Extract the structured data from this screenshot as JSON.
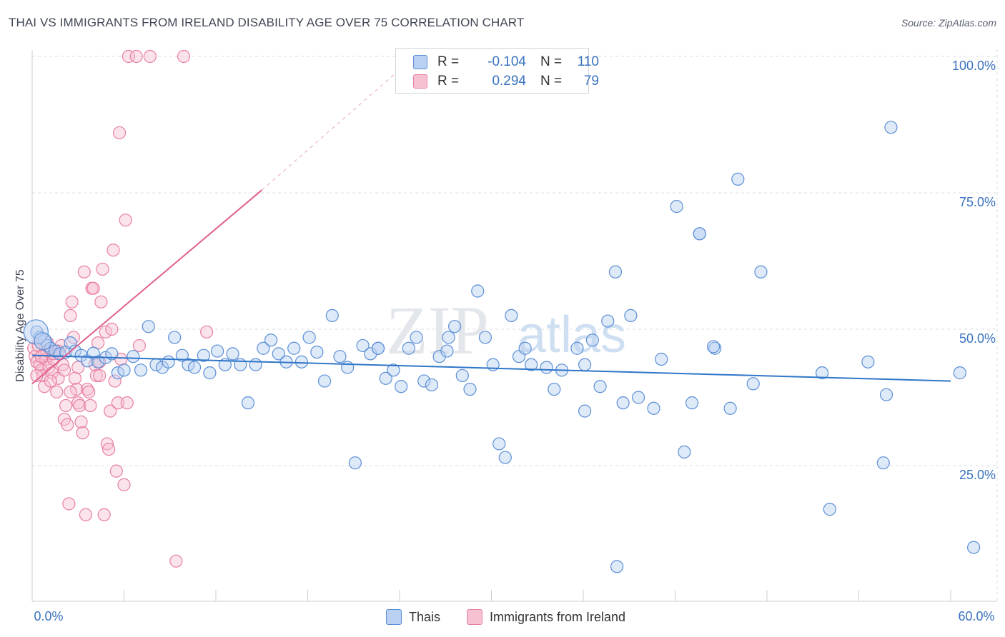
{
  "title": "THAI VS IMMIGRANTS FROM IRELAND DISABILITY AGE OVER 75 CORRELATION CHART",
  "source": "Source: ZipAtlas.com",
  "watermark": {
    "zip": "ZIP",
    "atlas": "atlas"
  },
  "legend": {
    "rows": [
      {
        "r_label": "R =",
        "r_value": "-0.104",
        "n_label": "N =",
        "n_value": "110",
        "color": "#5b8fd6",
        "fill": "#b9d0f2"
      },
      {
        "r_label": "R =",
        "r_value": "0.294",
        "n_label": "N =",
        "n_value": "79",
        "color": "#e87fa0",
        "fill": "#f6c2d2"
      }
    ]
  },
  "bottom_legend": {
    "series1": "Thais",
    "series2": "Immigrants from Ireland"
  },
  "colors": {
    "blue": "#5b8fd6",
    "blue_fill": "#b9d0f2",
    "blue_line": "#2f76c8",
    "pink": "#e87fa0",
    "pink_fill": "#f6c2d2",
    "pink_line": "#e06090",
    "axis_label": "#3a72c0",
    "grid": "#d9dde3"
  },
  "chart_data": {
    "type": "scatter",
    "title": "THAI VS IMMIGRANTS FROM IRELAND DISABILITY AGE OVER 75 CORRELATION CHART",
    "xlabel": "",
    "ylabel": "Disability Age Over 75",
    "xlim": [
      0,
      60
    ],
    "ylim": [
      0,
      105
    ],
    "x_tick_labels": [
      "0.0%",
      "60.0%"
    ],
    "y_ticks": [
      25,
      50,
      75,
      100
    ],
    "y_tick_labels": [
      "25.0%",
      "50.0%",
      "75.0%",
      "100.0%"
    ],
    "grid": true,
    "series": [
      {
        "name": "Thais",
        "points": [
          [
            0.3,
            49.5
          ],
          [
            0.5,
            48.5
          ],
          [
            0.8,
            48.0
          ],
          [
            1.0,
            47.0
          ],
          [
            1.2,
            46.5
          ],
          [
            1.5,
            46.0
          ],
          [
            1.8,
            45.5
          ],
          [
            2.2,
            45.8
          ],
          [
            2.5,
            47.5
          ],
          [
            2.8,
            46.0
          ],
          [
            3.2,
            45.2
          ],
          [
            3.6,
            44.2
          ],
          [
            4.0,
            45.6
          ],
          [
            4.3,
            44.0
          ],
          [
            4.8,
            44.8
          ],
          [
            5.2,
            45.5
          ],
          [
            5.6,
            42.0
          ],
          [
            6.0,
            42.5
          ],
          [
            6.6,
            45.0
          ],
          [
            7.1,
            42.5
          ],
          [
            7.6,
            50.5
          ],
          [
            8.1,
            43.5
          ],
          [
            8.5,
            43.0
          ],
          [
            8.9,
            44.0
          ],
          [
            9.3,
            48.5
          ],
          [
            9.8,
            45.2
          ],
          [
            10.2,
            43.5
          ],
          [
            10.6,
            43.0
          ],
          [
            11.2,
            45.2
          ],
          [
            11.6,
            42.0
          ],
          [
            12.1,
            46.0
          ],
          [
            12.6,
            43.5
          ],
          [
            13.1,
            45.5
          ],
          [
            13.6,
            43.5
          ],
          [
            14.1,
            36.5
          ],
          [
            14.6,
            43.5
          ],
          [
            15.1,
            46.5
          ],
          [
            15.6,
            48.0
          ],
          [
            16.1,
            45.5
          ],
          [
            16.6,
            44.0
          ],
          [
            17.1,
            46.5
          ],
          [
            17.6,
            44.0
          ],
          [
            18.1,
            48.5
          ],
          [
            18.6,
            45.8
          ],
          [
            19.1,
            40.5
          ],
          [
            19.6,
            52.5
          ],
          [
            20.1,
            45.0
          ],
          [
            20.6,
            43.0
          ],
          [
            21.1,
            25.5
          ],
          [
            21.6,
            47.0
          ],
          [
            22.1,
            45.5
          ],
          [
            22.6,
            46.5
          ],
          [
            23.1,
            41.0
          ],
          [
            23.6,
            42.5
          ],
          [
            24.1,
            39.5
          ],
          [
            24.6,
            46.5
          ],
          [
            25.1,
            48.5
          ],
          [
            25.6,
            40.5
          ],
          [
            26.1,
            39.8
          ],
          [
            26.6,
            45.0
          ],
          [
            27.1,
            46.0
          ],
          [
            27.6,
            50.5
          ],
          [
            28.1,
            41.5
          ],
          [
            28.6,
            39.0
          ],
          [
            29.1,
            57.0
          ],
          [
            29.6,
            48.5
          ],
          [
            30.1,
            43.5
          ],
          [
            30.5,
            29.0
          ],
          [
            30.9,
            26.5
          ],
          [
            31.3,
            52.5
          ],
          [
            31.8,
            45.0
          ],
          [
            32.2,
            46.5
          ],
          [
            32.6,
            43.5
          ],
          [
            33.6,
            43.0
          ],
          [
            34.1,
            39.0
          ],
          [
            34.6,
            42.5
          ],
          [
            35.6,
            46.5
          ],
          [
            36.1,
            43.5
          ],
          [
            36.6,
            48.0
          ],
          [
            36.1,
            35.0
          ],
          [
            37.1,
            39.5
          ],
          [
            37.6,
            51.5
          ],
          [
            38.1,
            60.5
          ],
          [
            38.6,
            36.5
          ],
          [
            39.1,
            52.5
          ],
          [
            39.6,
            37.5
          ],
          [
            40.6,
            35.5
          ],
          [
            41.1,
            44.5
          ],
          [
            42.1,
            72.5
          ],
          [
            42.6,
            27.5
          ],
          [
            43.1,
            36.5
          ],
          [
            43.6,
            67.5
          ],
          [
            44.6,
            46.5
          ],
          [
            45.6,
            35.5
          ],
          [
            46.1,
            77.5
          ],
          [
            47.1,
            40.0
          ],
          [
            47.6,
            60.5
          ],
          [
            38.2,
            6.5
          ],
          [
            43.6,
            67.5
          ],
          [
            44.5,
            46.8
          ],
          [
            51.6,
            42.0
          ],
          [
            52.1,
            17.0
          ],
          [
            54.6,
            44.0
          ],
          [
            55.6,
            25.5
          ],
          [
            55.8,
            38.0
          ],
          [
            56.1,
            87.0
          ],
          [
            60.6,
            42.0
          ],
          [
            61.5,
            10.0
          ],
          [
            22.6,
            46.5
          ],
          [
            27.2,
            48.5
          ]
        ]
      },
      {
        "name": "Immigrants from Ireland",
        "points": [
          [
            0.1,
            46.5
          ],
          [
            0.2,
            45.0
          ],
          [
            0.3,
            44.0
          ],
          [
            0.4,
            47.0
          ],
          [
            0.5,
            43.5
          ],
          [
            0.6,
            42.5
          ],
          [
            0.7,
            41.5
          ],
          [
            0.8,
            45.5
          ],
          [
            0.9,
            44.5
          ],
          [
            1.0,
            46.0
          ],
          [
            1.1,
            43.0
          ],
          [
            1.2,
            45.5
          ],
          [
            1.3,
            42.0
          ],
          [
            1.4,
            44.5
          ],
          [
            1.5,
            46.0
          ],
          [
            1.6,
            38.5
          ],
          [
            1.7,
            41.0
          ],
          [
            1.8,
            45.5
          ],
          [
            1.9,
            47.0
          ],
          [
            2.0,
            43.5
          ],
          [
            2.1,
            33.5
          ],
          [
            2.2,
            36.0
          ],
          [
            2.3,
            32.5
          ],
          [
            2.4,
            18.0
          ],
          [
            2.5,
            52.5
          ],
          [
            2.6,
            55.0
          ],
          [
            2.7,
            48.5
          ],
          [
            2.8,
            41.0
          ],
          [
            2.9,
            39.0
          ],
          [
            3.0,
            36.5
          ],
          [
            3.1,
            36.0
          ],
          [
            3.2,
            33.0
          ],
          [
            3.3,
            31.0
          ],
          [
            3.4,
            60.5
          ],
          [
            3.5,
            16.0
          ],
          [
            3.6,
            39.0
          ],
          [
            3.7,
            38.5
          ],
          [
            3.8,
            36.0
          ],
          [
            3.9,
            57.5
          ],
          [
            4.0,
            57.5
          ],
          [
            4.1,
            43.5
          ],
          [
            4.2,
            41.5
          ],
          [
            4.3,
            47.5
          ],
          [
            4.4,
            41.5
          ],
          [
            4.5,
            55.0
          ],
          [
            4.6,
            61.0
          ],
          [
            4.7,
            16.0
          ],
          [
            4.8,
            49.5
          ],
          [
            4.9,
            29.0
          ],
          [
            5.0,
            28.0
          ],
          [
            5.1,
            35.0
          ],
          [
            5.2,
            50.0
          ],
          [
            5.3,
            64.5
          ],
          [
            5.4,
            40.5
          ],
          [
            5.5,
            24.0
          ],
          [
            5.6,
            36.5
          ],
          [
            5.7,
            86.0
          ],
          [
            5.8,
            44.5
          ],
          [
            6.0,
            21.5
          ],
          [
            6.1,
            70.0
          ],
          [
            6.2,
            36.5
          ],
          [
            6.3,
            100.0
          ],
          [
            6.8,
            100.0
          ],
          [
            7.0,
            47.0
          ],
          [
            7.7,
            100.0
          ],
          [
            9.4,
            7.5
          ],
          [
            9.9,
            100.0
          ],
          [
            11.4,
            49.5
          ],
          [
            0.6,
            45.0
          ],
          [
            1.0,
            47.5
          ],
          [
            1.4,
            45.5
          ],
          [
            1.7,
            46.0
          ],
          [
            2.1,
            42.5
          ],
          [
            2.5,
            38.5
          ],
          [
            3.0,
            43.0
          ],
          [
            0.3,
            41.5
          ],
          [
            0.8,
            39.5
          ],
          [
            1.2,
            40.5
          ],
          [
            4.4,
            44.0
          ]
        ]
      }
    ],
    "trend_lines": [
      {
        "series": "Thais",
        "from": [
          0,
          45.2
        ],
        "to": [
          60,
          40.5
        ]
      },
      {
        "series": "Immigrants from Ireland",
        "from": [
          0,
          40.0
        ],
        "to": [
          15,
          75.5
        ],
        "dashed_extension_to": [
          25,
          100.0
        ]
      }
    ]
  }
}
